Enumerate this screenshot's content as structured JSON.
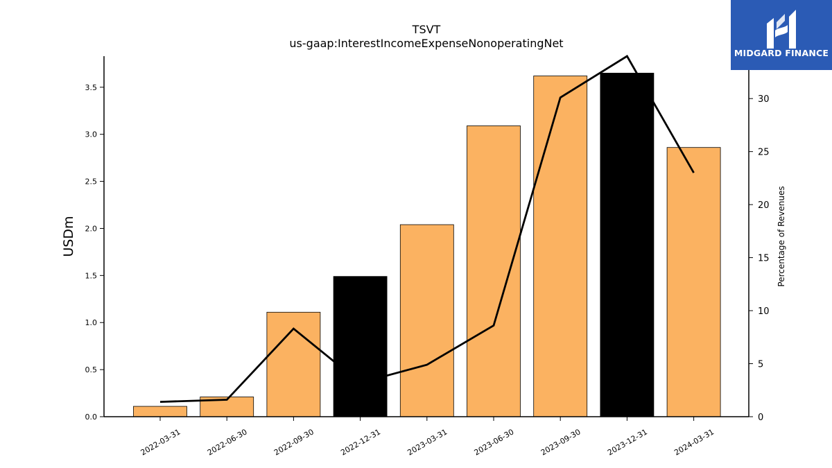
{
  "chart_data": {
    "type": "bar",
    "title": "TSVT",
    "subtitle": "us-gaap:InterestIncomeExpenseNonoperatingNet",
    "categories": [
      "2022-03-31",
      "2022-06-30",
      "2022-09-30",
      "2022-12-31",
      "2023-03-31",
      "2023-06-30",
      "2023-09-30",
      "2023-12-31",
      "2024-03-31"
    ],
    "series": [
      {
        "values": [
          0.11,
          0.21,
          1.11,
          1.49,
          2.04,
          3.09,
          3.62,
          3.65,
          2.86
        ],
        "axis": "left",
        "kind": "bar",
        "highlighted": [
          false,
          false,
          false,
          true,
          false,
          false,
          false,
          true,
          false
        ]
      },
      {
        "values": [
          1.4,
          1.6,
          8.3,
          3.2,
          4.9,
          8.6,
          30.1,
          34.0,
          23.0
        ],
        "axis": "right",
        "kind": "line"
      }
    ],
    "ylabel": "USDm",
    "y2label": "Percentage of Revenues",
    "ylim": [
      0,
      3.83
    ],
    "y2lim": [
      0,
      34.0
    ],
    "yticks": [
      "0.0",
      "0.5",
      "1.0",
      "1.5",
      "2.0",
      "2.5",
      "3.0",
      "3.5"
    ],
    "y2ticks": [
      "0",
      "5",
      "10",
      "15",
      "20",
      "25",
      "30"
    ],
    "colors": {
      "bar": "#fbb261",
      "bar_highlight": "#000000",
      "line": "#000000",
      "logo_bg": "#2b5bb5"
    },
    "grid": false
  },
  "logo": {
    "text": "MIDGARD FINANCE"
  }
}
